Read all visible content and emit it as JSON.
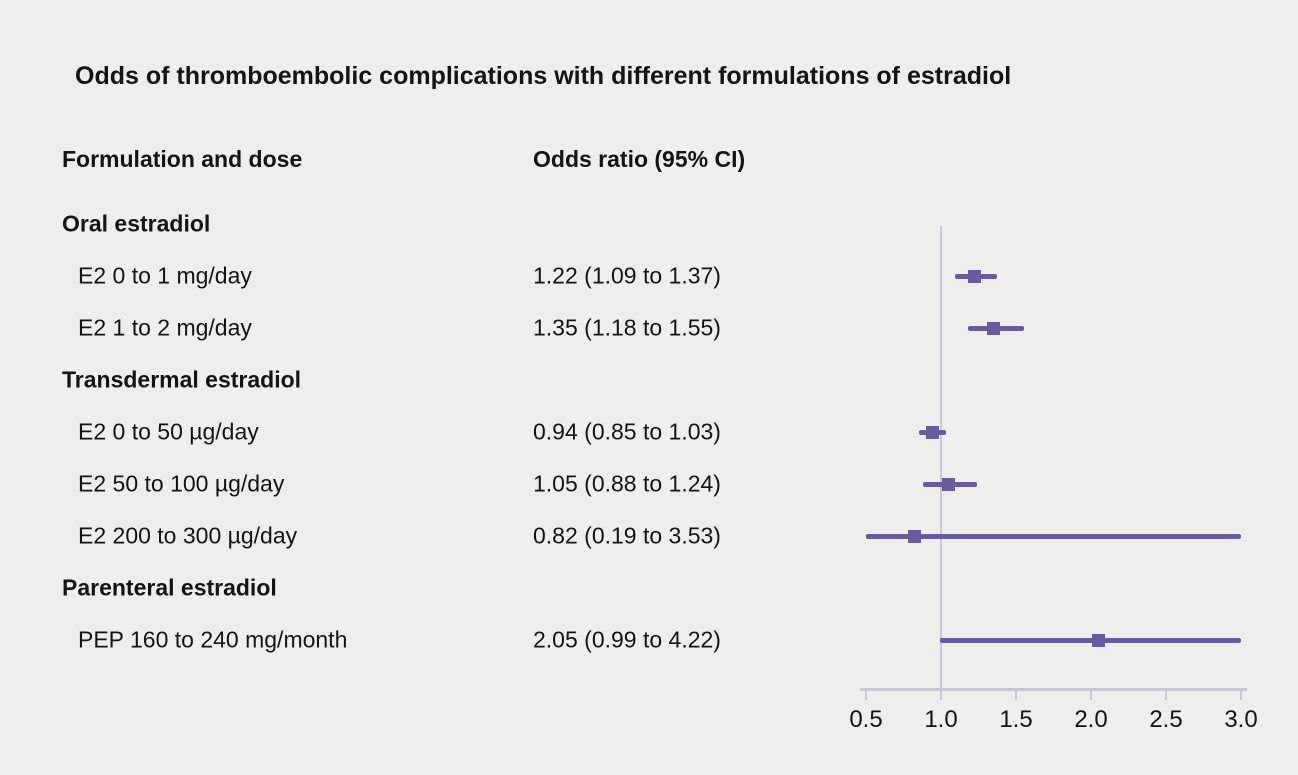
{
  "title": "Odds of thromboembolic complications with different formulations of estradiol",
  "columns": {
    "label": "Formulation and dose",
    "or": "Odds ratio (95% CI)"
  },
  "chart_data": {
    "type": "forest",
    "title": "Odds of thromboembolic complications with different formulations of estradiol",
    "xlabel": "Odds ratio",
    "xlim": [
      0.5,
      3.0
    ],
    "ticks": [
      0.5,
      1.0,
      1.5,
      2.0,
      2.5,
      3.0
    ],
    "tick_labels": [
      "0.5",
      "1.0",
      "1.5",
      "2.0",
      "2.5",
      "3.0"
    ],
    "reference_value": 1.0,
    "colors": {
      "marker": "#6a5a9f",
      "axis": "#c9c9d6",
      "background": "#efeeec",
      "text": "#141414"
    },
    "rows": [
      {
        "label": "Oral estradiol",
        "group": true
      },
      {
        "label": "E2 0 to 1 mg/day",
        "group": false,
        "or_text": "1.22 (1.09 to 1.37)",
        "or": 1.22,
        "lo": 1.09,
        "hi": 1.37
      },
      {
        "label": "E2 1 to 2 mg/day",
        "group": false,
        "or_text": "1.35 (1.18 to 1.55)",
        "or": 1.35,
        "lo": 1.18,
        "hi": 1.55
      },
      {
        "label": "Transdermal estradiol",
        "group": true
      },
      {
        "label": "E2 0 to 50 µg/day",
        "group": false,
        "or_text": "0.94 (0.85 to 1.03)",
        "or": 0.94,
        "lo": 0.85,
        "hi": 1.03
      },
      {
        "label": "E2 50 to 100 µg/day",
        "group": false,
        "or_text": "1.05 (0.88 to 1.24)",
        "or": 1.05,
        "lo": 0.88,
        "hi": 1.24
      },
      {
        "label": "E2 200 to 300 µg/day",
        "group": false,
        "or_text": "0.82 (0.19 to 3.53)",
        "or": 0.82,
        "lo": 0.19,
        "hi": 3.53
      },
      {
        "label": "Parenteral estradiol",
        "group": true
      },
      {
        "label": "PEP 160 to 240 mg/month",
        "group": false,
        "or_text": "2.05 (0.99 to 4.22)",
        "or": 2.05,
        "lo": 0.99,
        "hi": 4.22
      }
    ]
  }
}
